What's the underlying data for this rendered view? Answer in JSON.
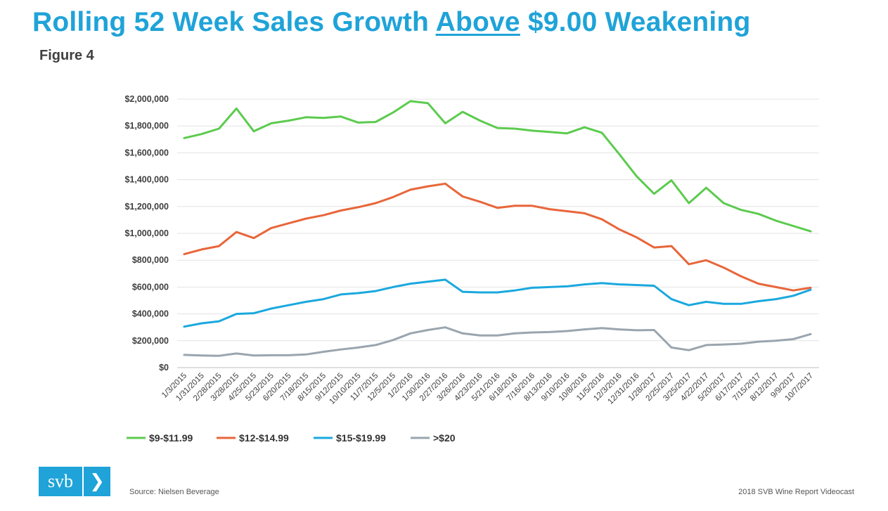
{
  "header": {
    "title_pre": "Rolling 52 Week Sales Growth ",
    "title_underlined": "Above",
    "title_post": " $9.00 Weakening",
    "figure_label": "Figure 4"
  },
  "footer": {
    "logo_text": "svb",
    "logo_arrow": "❯",
    "source": "Source: Nielsen Beverage",
    "credit": "2018 SVB Wine Report Videocast"
  },
  "chart_data": {
    "type": "line",
    "title": "",
    "xlabel": "",
    "ylabel": "",
    "ylim": [
      0,
      2000000
    ],
    "yticks": [
      0,
      200000,
      400000,
      600000,
      800000,
      1000000,
      1200000,
      1400000,
      1600000,
      1800000,
      2000000
    ],
    "ytick_labels": [
      "$0",
      "$200,000",
      "$400,000",
      "$600,000",
      "$800,000",
      "$1,000,000",
      "$1,200,000",
      "$1,400,000",
      "$1,600,000",
      "$1,800,000",
      "$2,000,000"
    ],
    "grid": true,
    "legend_position": "bottom-left",
    "x": [
      "1/3/2015",
      "1/31/2015",
      "2/28/2015",
      "3/28/2015",
      "4/25/2015",
      "5/23/2015",
      "6/20/2015",
      "7/18/2015",
      "8/15/2015",
      "9/12/2015",
      "10/10/2015",
      "11/7/2015",
      "12/5/2015",
      "1/2/2016",
      "1/30/2016",
      "2/27/2016",
      "3/26/2016",
      "4/23/2016",
      "5/21/2016",
      "6/18/2016",
      "7/16/2016",
      "8/13/2016",
      "9/10/2016",
      "10/8/2016",
      "11/5/2016",
      "12/3/2016",
      "12/31/2016",
      "1/28/2017",
      "2/25/2017",
      "3/25/2017",
      "4/22/2017",
      "5/20/2017",
      "6/17/2017",
      "7/15/2017",
      "8/12/2017",
      "9/9/2017",
      "10/7/2017"
    ],
    "series": [
      {
        "name": "$9-$11.99",
        "color": "#5ccb4e",
        "values": [
          1710000,
          1740000,
          1780000,
          1930000,
          1760000,
          1820000,
          1840000,
          1865000,
          1860000,
          1870000,
          1825000,
          1830000,
          1900000,
          1985000,
          1970000,
          1820000,
          1905000,
          1840000,
          1785000,
          1780000,
          1765000,
          1755000,
          1745000,
          1790000,
          1750000,
          1590000,
          1425000,
          1295000,
          1395000,
          1225000,
          1340000,
          1225000,
          1175000,
          1145000,
          1095000,
          1055000,
          1015000
        ]
      },
      {
        "name": "$12-$14.99",
        "color": "#e8663a",
        "values": [
          845000,
          880000,
          905000,
          1010000,
          965000,
          1040000,
          1075000,
          1110000,
          1135000,
          1170000,
          1195000,
          1225000,
          1270000,
          1325000,
          1350000,
          1370000,
          1275000,
          1235000,
          1190000,
          1205000,
          1205000,
          1180000,
          1165000,
          1150000,
          1105000,
          1030000,
          970000,
          895000,
          905000,
          770000,
          800000,
          745000,
          680000,
          625000,
          600000,
          575000,
          595000
        ]
      },
      {
        "name": "$15-$19.99",
        "color": "#1aa8de",
        "values": [
          305000,
          330000,
          345000,
          400000,
          405000,
          440000,
          465000,
          490000,
          510000,
          545000,
          555000,
          570000,
          600000,
          625000,
          640000,
          655000,
          565000,
          560000,
          560000,
          575000,
          595000,
          600000,
          605000,
          620000,
          630000,
          620000,
          615000,
          610000,
          510000,
          465000,
          490000,
          475000,
          475000,
          495000,
          510000,
          535000,
          580000
        ]
      },
      {
        "name": ">$20",
        "color": "#9aa5ae",
        "values": [
          95000,
          90000,
          88000,
          105000,
          90000,
          92000,
          92000,
          98000,
          118000,
          135000,
          150000,
          168000,
          205000,
          255000,
          280000,
          300000,
          255000,
          240000,
          240000,
          255000,
          262000,
          265000,
          272000,
          285000,
          295000,
          285000,
          278000,
          280000,
          150000,
          130000,
          168000,
          172000,
          178000,
          193000,
          200000,
          212000,
          250000
        ]
      }
    ]
  }
}
